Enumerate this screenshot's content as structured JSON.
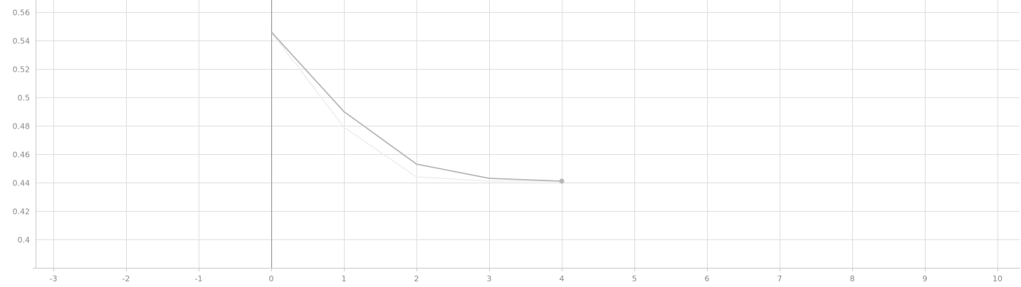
{
  "chart_data": {
    "type": "line",
    "title": "",
    "xlabel": "",
    "ylabel": "",
    "xlim": [
      -3.0,
      10.3
    ],
    "ylim": [
      0.38,
      0.5625
    ],
    "x_ticks": [
      -3,
      -2,
      -1,
      0,
      1,
      2,
      3,
      4,
      5,
      6,
      7,
      8,
      9,
      10
    ],
    "x_tick_labels": [
      "-3",
      "-2",
      "-1",
      "0",
      "1",
      "2",
      "3",
      "4",
      "5",
      "6",
      "7",
      "8",
      "9",
      "10"
    ],
    "y_ticks": [
      0.4,
      0.42,
      0.44,
      0.46,
      0.48,
      0.5,
      0.52,
      0.54,
      0.56
    ],
    "y_tick_labels": [
      "0.4",
      "0.42",
      "0.44",
      "0.46",
      "0.48",
      "0.5",
      "0.52",
      "0.54",
      "0.56"
    ],
    "grid": true,
    "vertical_marker_x": 0,
    "series": [
      {
        "role": "smoothed",
        "color": "#b8b8b8",
        "x": [
          0,
          1,
          2,
          3,
          4
        ],
        "y": [
          0.546,
          0.49,
          0.453,
          0.443,
          0.441
        ],
        "end_marker": true
      },
      {
        "role": "raw",
        "color": "#eeeeee",
        "x": [
          0,
          1,
          2,
          3,
          4
        ],
        "y": [
          0.546,
          0.479,
          0.444,
          0.441,
          0.441
        ],
        "end_marker": false
      }
    ],
    "colors": {
      "grid": "#dedede",
      "axis": "#c9c9c9",
      "marker_line": "#9a9a9a",
      "tick_text": "#8a8a8a"
    }
  }
}
